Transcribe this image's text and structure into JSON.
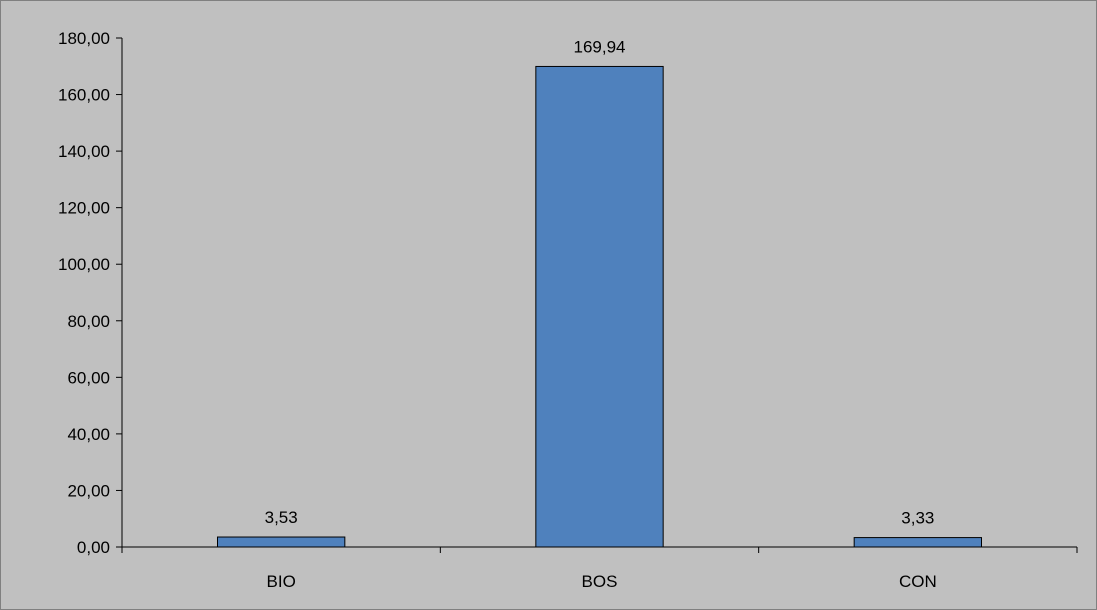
{
  "chart_data": {
    "type": "bar",
    "title": "",
    "xlabel": "",
    "ylabel": "",
    "categories": [
      "BIO",
      "BOS",
      "CON"
    ],
    "values": [
      3.53,
      169.94,
      3.33
    ],
    "value_labels": [
      "3,53",
      "169,94",
      "3,33"
    ],
    "ylim": [
      0,
      180
    ],
    "y_ticks": [
      0,
      20,
      40,
      60,
      80,
      100,
      120,
      140,
      160,
      180
    ],
    "y_tick_labels": [
      "0,00",
      "20,00",
      "40,00",
      "60,00",
      "80,00",
      "100,00",
      "120,00",
      "140,00",
      "160,00",
      "180,00"
    ],
    "grid": false,
    "legend": "none",
    "colors": {
      "background": "#c0c0c0",
      "bar_fill": "#4f81bd",
      "bar_stroke": "#000000",
      "axis": "#000000",
      "text": "#000000"
    }
  }
}
